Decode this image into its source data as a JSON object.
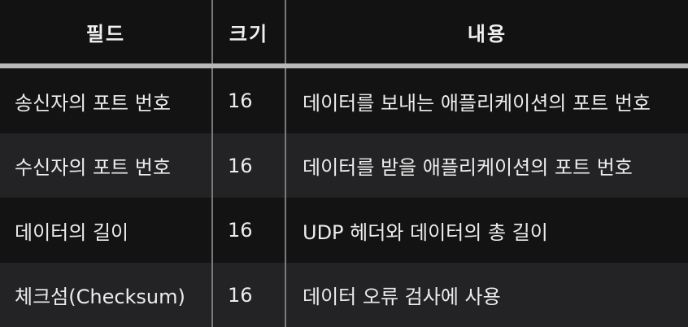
{
  "table": {
    "headers": [
      "필드",
      "크기",
      "내용"
    ],
    "rows": [
      {
        "field": "송신자의 포트 번호",
        "size": "16",
        "desc": "데이터를 보내는 애플리케이션의 포트 번호"
      },
      {
        "field": "수신자의 포트 번호",
        "size": "16",
        "desc": "데이터를 받을 애플리케이션의 포트 번호"
      },
      {
        "field": "데이터의 길이",
        "size": "16",
        "desc": "UDP 헤더와 데이터의 총 길이"
      },
      {
        "field": "체크섬(Checksum)",
        "size": "16",
        "desc": "데이터 오류 검사에 사용"
      }
    ]
  }
}
